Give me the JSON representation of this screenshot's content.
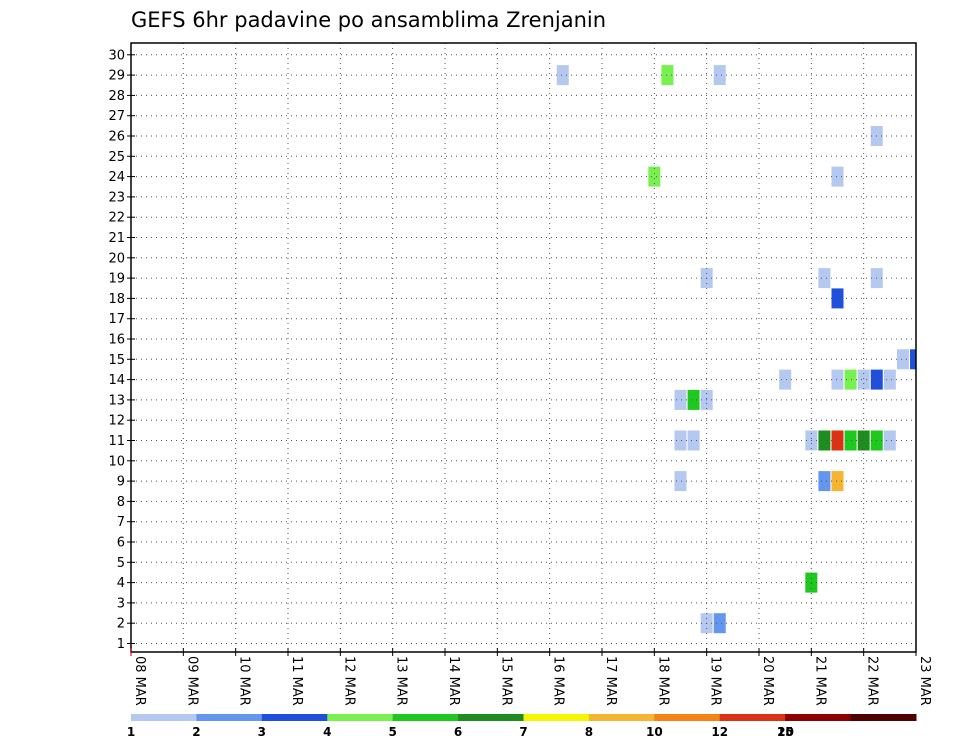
{
  "chart_data": {
    "type": "heatmap",
    "title": "GEFS 6hr padavine po ansamblima Zrenjanin",
    "xlabel": "",
    "ylabel": "",
    "x_tick_labels": [
      "08 MAR",
      "09 MAR",
      "10 MAR",
      "11 MAR",
      "12 MAR",
      "13 MAR",
      "14 MAR",
      "15 MAR",
      "16 MAR",
      "17 MAR",
      "18 MAR",
      "19 MAR",
      "20 MAR",
      "21 MAR",
      "22 MAR",
      "23 MAR"
    ],
    "xlim": [
      0,
      15
    ],
    "y_tick_labels": [
      "1",
      "2",
      "3",
      "4",
      "5",
      "6",
      "7",
      "8",
      "9",
      "10",
      "11",
      "12",
      "13",
      "14",
      "15",
      "16",
      "17",
      "18",
      "19",
      "20",
      "21",
      "22",
      "23",
      "24",
      "25",
      "26",
      "27",
      "28",
      "29",
      "30"
    ],
    "ylim": [
      0,
      30
    ],
    "grid": true,
    "colorbar": {
      "colors": [
        "#b4c8f0",
        "#6496f0",
        "#1e50dc",
        "#78f050",
        "#1ec81e",
        "#1e8c1e",
        "#f5f500",
        "#f5b432",
        "#f58214",
        "#dc3214",
        "#8c0000",
        "#500000"
      ],
      "labels": [
        "1",
        "2",
        "3",
        "4",
        "5",
        "6",
        "7",
        "8",
        "10",
        "12",
        "15",
        "20"
      ]
    },
    "cells": [
      {
        "day": 8.25,
        "member": 29,
        "level": 1
      },
      {
        "day": 10.25,
        "member": 29,
        "level": 4
      },
      {
        "day": 11.25,
        "member": 29,
        "level": 1
      },
      {
        "day": 14.25,
        "member": 26,
        "level": 1
      },
      {
        "day": 10.0,
        "member": 24,
        "level": 4
      },
      {
        "day": 13.5,
        "member": 24,
        "level": 1
      },
      {
        "day": 11.0,
        "member": 19,
        "level": 1
      },
      {
        "day": 13.25,
        "member": 19,
        "level": 1
      },
      {
        "day": 14.25,
        "member": 19,
        "level": 1
      },
      {
        "day": 13.5,
        "member": 18,
        "level": 3
      },
      {
        "day": 14.75,
        "member": 15,
        "level": 1
      },
      {
        "day": 15.0,
        "member": 15,
        "level": 3
      },
      {
        "day": 12.5,
        "member": 14,
        "level": 1
      },
      {
        "day": 13.5,
        "member": 14,
        "level": 1
      },
      {
        "day": 13.75,
        "member": 14,
        "level": 4
      },
      {
        "day": 14.0,
        "member": 14,
        "level": 1
      },
      {
        "day": 14.25,
        "member": 14,
        "level": 3
      },
      {
        "day": 14.5,
        "member": 14,
        "level": 1
      },
      {
        "day": 10.5,
        "member": 13,
        "level": 1
      },
      {
        "day": 10.75,
        "member": 13,
        "level": 5
      },
      {
        "day": 11.0,
        "member": 13,
        "level": 1
      },
      {
        "day": 10.5,
        "member": 11,
        "level": 1
      },
      {
        "day": 10.75,
        "member": 11,
        "level": 1
      },
      {
        "day": 13.0,
        "member": 11,
        "level": 1
      },
      {
        "day": 13.25,
        "member": 11,
        "level": 6
      },
      {
        "day": 13.5,
        "member": 11,
        "level": 10
      },
      {
        "day": 13.75,
        "member": 11,
        "level": 5
      },
      {
        "day": 14.0,
        "member": 11,
        "level": 6
      },
      {
        "day": 14.25,
        "member": 11,
        "level": 5
      },
      {
        "day": 14.5,
        "member": 11,
        "level": 1
      },
      {
        "day": 10.5,
        "member": 9,
        "level": 1
      },
      {
        "day": 13.25,
        "member": 9,
        "level": 2
      },
      {
        "day": 13.5,
        "member": 9,
        "level": 8
      },
      {
        "day": 13.0,
        "member": 4,
        "level": 5
      },
      {
        "day": 11.0,
        "member": 2,
        "level": 1
      },
      {
        "day": 11.25,
        "member": 2,
        "level": 2
      }
    ]
  }
}
